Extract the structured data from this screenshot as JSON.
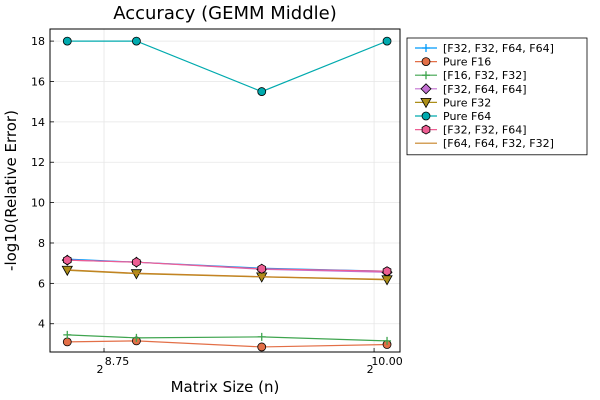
{
  "chart_data": {
    "type": "line",
    "title": "Accuracy (GEMM Middle)",
    "xlabel": "Matrix Size (n)",
    "ylabel": "-log10(Relative Error)",
    "x_scale": "log2",
    "x_exponents": [
      8.58,
      8.9,
      9.48,
      10.06
    ],
    "x_ticks": [
      {
        "value": 8.75,
        "base": "2",
        "exp": "8.75"
      },
      {
        "value": 10.0,
        "base": "2",
        "exp": "10.00"
      }
    ],
    "ylim": [
      2.6,
      18.6
    ],
    "y_ticks": [
      4,
      6,
      8,
      10,
      12,
      14,
      16,
      18
    ],
    "grid": true,
    "legend_position": "top-right-outside",
    "series": [
      {
        "name": "[F32, F32, F64, F64]",
        "color": "#009AFA",
        "marker": "cross",
        "values": [
          7.2,
          7.05,
          6.75,
          6.6
        ]
      },
      {
        "name": "Pure F16",
        "color": "#E36F47",
        "marker": "circle",
        "values": [
          3.1,
          3.15,
          2.85,
          2.97
        ]
      },
      {
        "name": "[F16, F32, F32]",
        "color": "#3EA44E",
        "marker": "cross",
        "values": [
          3.45,
          3.3,
          3.35,
          3.15
        ]
      },
      {
        "name": "[F32, F64, F64]",
        "color": "#C371D2",
        "marker": "diamond",
        "values": [
          7.15,
          7.05,
          6.7,
          6.55
        ]
      },
      {
        "name": "Pure F32",
        "color": "#AC8E18",
        "marker": "triangle-down",
        "values": [
          6.65,
          6.48,
          6.32,
          6.18
        ]
      },
      {
        "name": "Pure F64",
        "color": "#00AAAE",
        "marker": "circle",
        "values": [
          18.0,
          18.0,
          15.5,
          18.0
        ]
      },
      {
        "name": "[F32, F32, F64]",
        "color": "#ED5E93",
        "marker": "hexagon",
        "values": [
          7.15,
          7.05,
          6.72,
          6.6
        ]
      },
      {
        "name": "[F64, F64, F32, F32]",
        "color": "#C68225",
        "marker": "none",
        "values": [
          6.67,
          6.5,
          6.33,
          6.2
        ]
      }
    ]
  }
}
